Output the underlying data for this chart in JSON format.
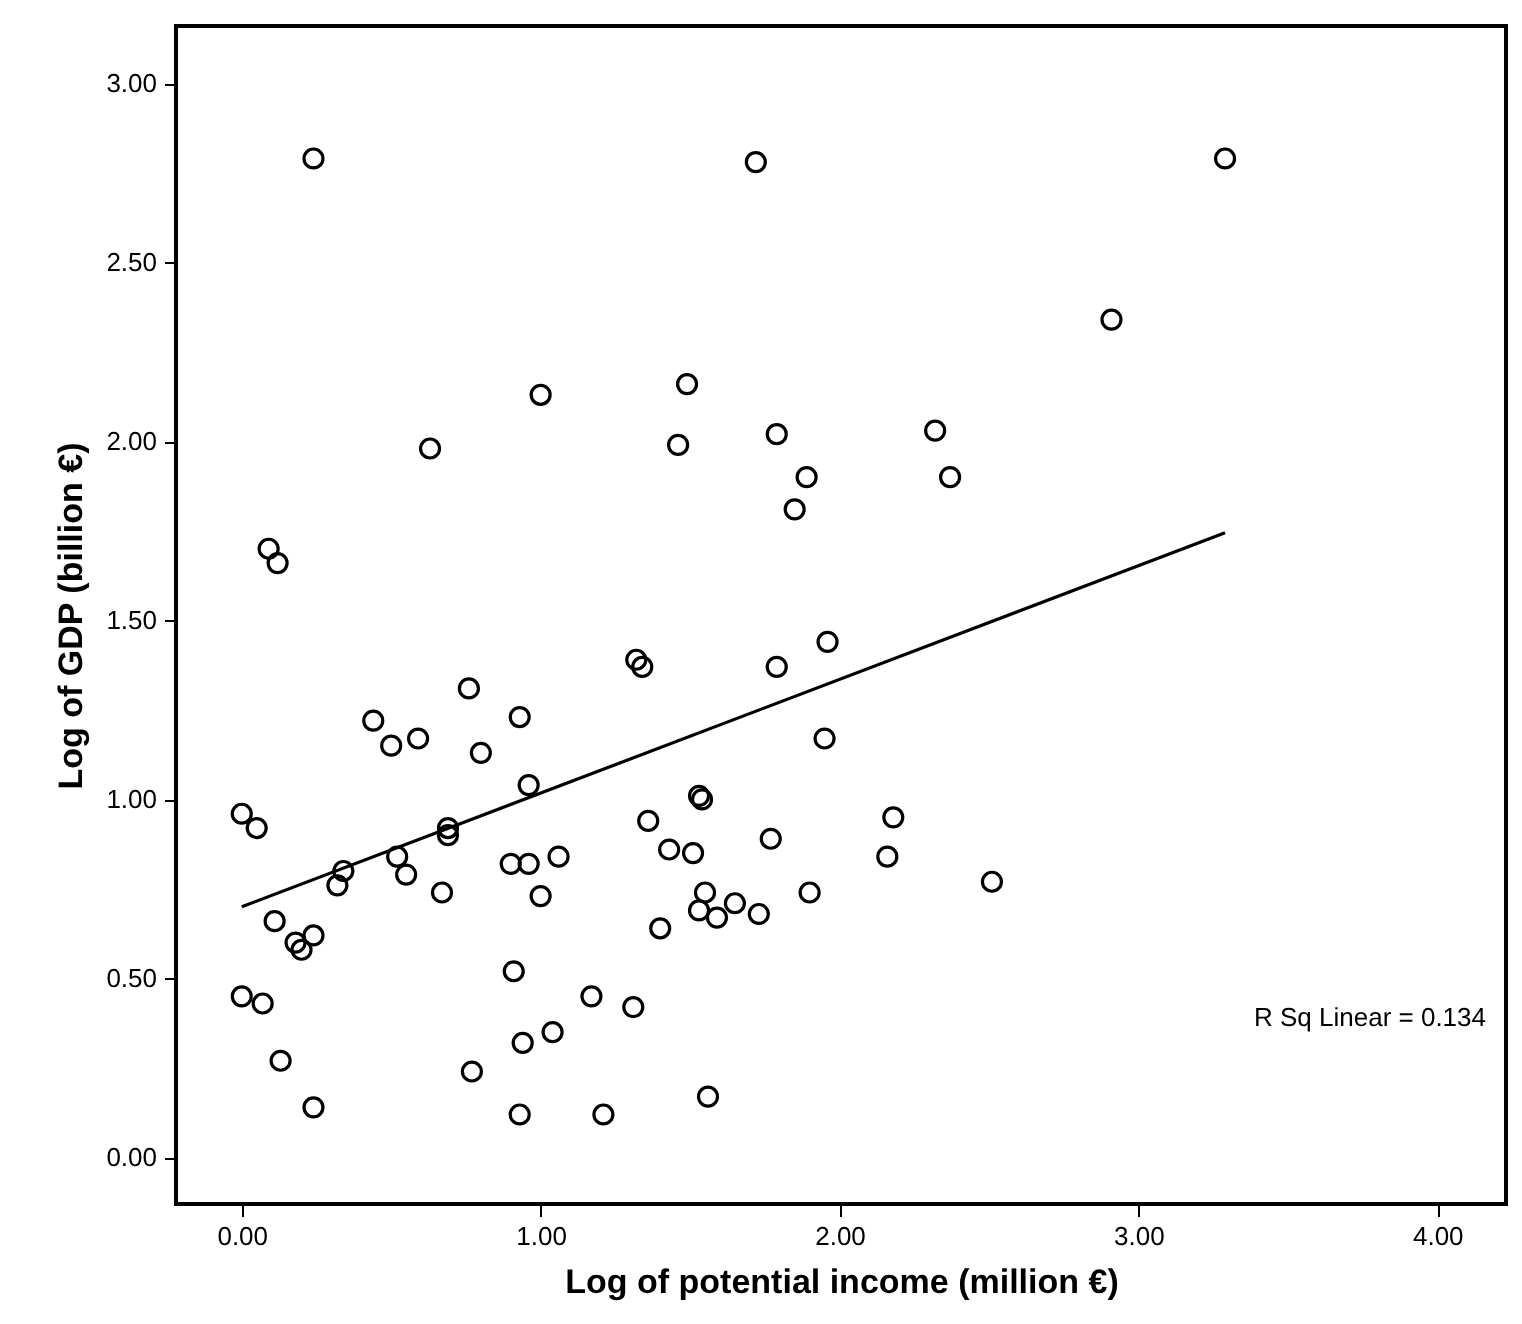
{
  "chart_data": {
    "type": "scatter",
    "xlabel": "Log of potential income (million €)",
    "ylabel": "Log of GDP (billion €)",
    "annotations": [
      "R Sq Linear = 0.134"
    ],
    "xlim": [
      -0.22,
      4.23
    ],
    "ylim": [
      -0.13,
      3.16
    ],
    "xticks": [
      {
        "value": 0,
        "label": "0.00"
      },
      {
        "value": 1,
        "label": "1.00"
      },
      {
        "value": 2,
        "label": "2.00"
      },
      {
        "value": 3,
        "label": "3.00"
      },
      {
        "value": 4,
        "label": "4.00"
      }
    ],
    "yticks": [
      {
        "value": 0,
        "label": "0.00"
      },
      {
        "value": 0.5,
        "label": "0.50"
      },
      {
        "value": 1,
        "label": "1.00"
      },
      {
        "value": 1.5,
        "label": "1.50"
      },
      {
        "value": 2,
        "label": "2.00"
      },
      {
        "value": 2.5,
        "label": "2.50"
      },
      {
        "value": 3,
        "label": "3.00"
      }
    ],
    "grid": false,
    "series": [
      {
        "marker": "circle",
        "color": "#000000",
        "x": [
          0.24,
          1.72,
          1.0,
          1.49,
          0.63,
          1.46,
          1.79,
          1.89,
          1.85,
          0.09,
          0.12,
          3.29,
          2.91,
          2.32,
          2.37,
          1.32,
          1.34,
          1.79,
          0.76,
          0.93,
          0.44,
          0.59,
          0.5,
          0.8,
          0.96,
          1.53,
          1.54,
          0.0,
          0.05,
          1.36,
          0.69,
          0.69,
          1.77,
          1.43,
          1.51,
          1.06,
          0.52,
          0.9,
          0.96,
          0.34,
          0.32,
          0.55,
          0.67,
          1.9,
          1.0,
          1.55,
          1.65,
          1.53,
          1.59,
          1.73,
          1.4,
          0.11,
          0.24,
          0.18,
          0.2,
          0.91,
          0.0,
          0.07,
          1.17,
          1.31,
          1.04,
          0.94,
          0.13,
          0.77,
          0.24,
          0.93,
          1.21,
          1.56,
          1.96,
          1.95,
          2.18,
          2.16,
          2.51
        ],
        "values": [
          2.79,
          2.78,
          2.13,
          2.16,
          1.98,
          1.99,
          2.02,
          1.9,
          1.81,
          1.7,
          1.66,
          2.79,
          2.34,
          2.03,
          1.9,
          1.39,
          1.37,
          1.37,
          1.31,
          1.23,
          1.22,
          1.17,
          1.15,
          1.13,
          1.04,
          1.01,
          1.0,
          0.96,
          0.92,
          0.94,
          0.92,
          0.9,
          0.89,
          0.86,
          0.85,
          0.84,
          0.84,
          0.82,
          0.82,
          0.8,
          0.76,
          0.79,
          0.74,
          0.74,
          0.73,
          0.74,
          0.71,
          0.69,
          0.67,
          0.68,
          0.64,
          0.66,
          0.62,
          0.6,
          0.58,
          0.52,
          0.45,
          0.43,
          0.45,
          0.42,
          0.35,
          0.32,
          0.27,
          0.24,
          0.14,
          0.12,
          0.12,
          0.17,
          1.44,
          1.17,
          0.95,
          0.84,
          0.77
        ]
      },
      {
        "type": "line",
        "marker": "none",
        "color": "#000000",
        "x": [
          0.0,
          3.29
        ],
        "values": [
          0.7,
          1.745
        ]
      }
    ]
  }
}
